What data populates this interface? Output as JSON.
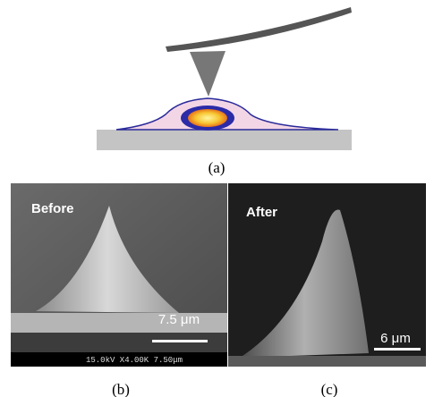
{
  "panels": [
    {
      "caption": "(a)"
    },
    {
      "caption": "(b)",
      "label": "Before",
      "scale_bar": "7.5 μm",
      "info_bar": "15.0kV X4.00K 7.50μm"
    },
    {
      "caption": "(c)",
      "label": "After",
      "scale_bar": "6 μm"
    }
  ]
}
